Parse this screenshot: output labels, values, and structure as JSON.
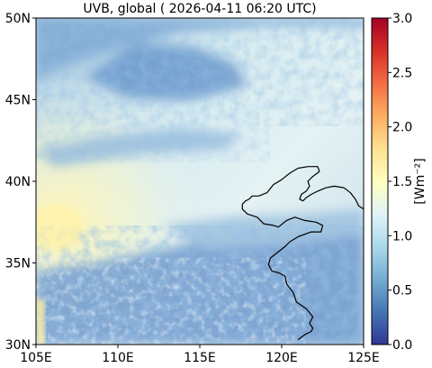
{
  "title": "UVB, global ( 2026-04-11 06:20 UTC)",
  "map": {
    "lon_range": [
      105,
      125
    ],
    "lat_range": [
      30,
      50
    ],
    "x_ticks": [
      {
        "value": 105,
        "label": "105E"
      },
      {
        "value": 110,
        "label": "110E"
      },
      {
        "value": 115,
        "label": "115E"
      },
      {
        "value": 120,
        "label": "120E"
      },
      {
        "value": 125,
        "label": "125E"
      }
    ],
    "y_ticks": [
      {
        "value": 50,
        "label": "50N"
      },
      {
        "value": 45,
        "label": "45N"
      },
      {
        "value": 40,
        "label": "40N"
      },
      {
        "value": 35,
        "label": "35N"
      },
      {
        "value": 30,
        "label": "30N"
      }
    ],
    "coastline": [
      [
        125.0,
        38.3
      ],
      [
        124.7,
        38.5
      ],
      [
        124.5,
        38.9
      ],
      [
        124.2,
        39.3
      ],
      [
        123.8,
        39.6
      ],
      [
        123.2,
        39.7
      ],
      [
        122.7,
        39.6
      ],
      [
        122.2,
        39.4
      ],
      [
        121.8,
        39.2
      ],
      [
        121.5,
        39.0
      ],
      [
        121.3,
        38.8
      ],
      [
        121.1,
        38.9
      ],
      [
        121.2,
        39.2
      ],
      [
        121.5,
        39.4
      ],
      [
        121.7,
        39.7
      ],
      [
        121.6,
        40.0
      ],
      [
        121.9,
        40.3
      ],
      [
        122.3,
        40.6
      ],
      [
        122.2,
        40.9
      ],
      [
        121.6,
        40.9
      ],
      [
        121.0,
        40.8
      ],
      [
        120.5,
        40.5
      ],
      [
        120.0,
        40.1
      ],
      [
        119.5,
        39.8
      ],
      [
        119.1,
        39.3
      ],
      [
        118.6,
        39.1
      ],
      [
        118.2,
        39.1
      ],
      [
        118.0,
        38.9
      ],
      [
        117.8,
        38.8
      ],
      [
        117.6,
        38.6
      ],
      [
        117.6,
        38.3
      ],
      [
        117.9,
        38.0
      ],
      [
        118.5,
        37.8
      ],
      [
        118.9,
        37.4
      ],
      [
        119.5,
        37.3
      ],
      [
        119.8,
        37.2
      ],
      [
        120.3,
        37.6
      ],
      [
        120.8,
        37.8
      ],
      [
        121.4,
        37.6
      ],
      [
        122.1,
        37.5
      ],
      [
        122.5,
        37.3
      ],
      [
        122.4,
        36.9
      ],
      [
        121.8,
        36.9
      ],
      [
        121.0,
        36.6
      ],
      [
        120.5,
        36.3
      ],
      [
        120.2,
        36.0
      ],
      [
        119.7,
        35.6
      ],
      [
        119.3,
        35.3
      ],
      [
        119.2,
        34.9
      ],
      [
        119.4,
        34.5
      ],
      [
        119.8,
        34.4
      ],
      [
        120.2,
        34.2
      ],
      [
        120.3,
        33.7
      ],
      [
        120.7,
        33.2
      ],
      [
        120.9,
        32.6
      ],
      [
        121.5,
        32.2
      ],
      [
        121.9,
        31.7
      ],
      [
        121.7,
        31.3
      ],
      [
        121.9,
        31.0
      ],
      [
        121.8,
        30.8
      ],
      [
        121.4,
        30.6
      ],
      [
        121.0,
        30.3
      ]
    ]
  },
  "colorbar": {
    "label": "[Wm⁻²]",
    "range": [
      0.0,
      3.0
    ],
    "ticks": [
      "0.0",
      "0.5",
      "1.0",
      "1.5",
      "2.0",
      "2.5",
      "3.0"
    ],
    "colormap": "RdYlBu_r",
    "colors": [
      "#313695",
      "#4575b4",
      "#74add1",
      "#abd9e9",
      "#e0f3f8",
      "#ffffbf",
      "#fee090",
      "#fdae61",
      "#f46d43",
      "#d73027",
      "#a50026"
    ]
  }
}
